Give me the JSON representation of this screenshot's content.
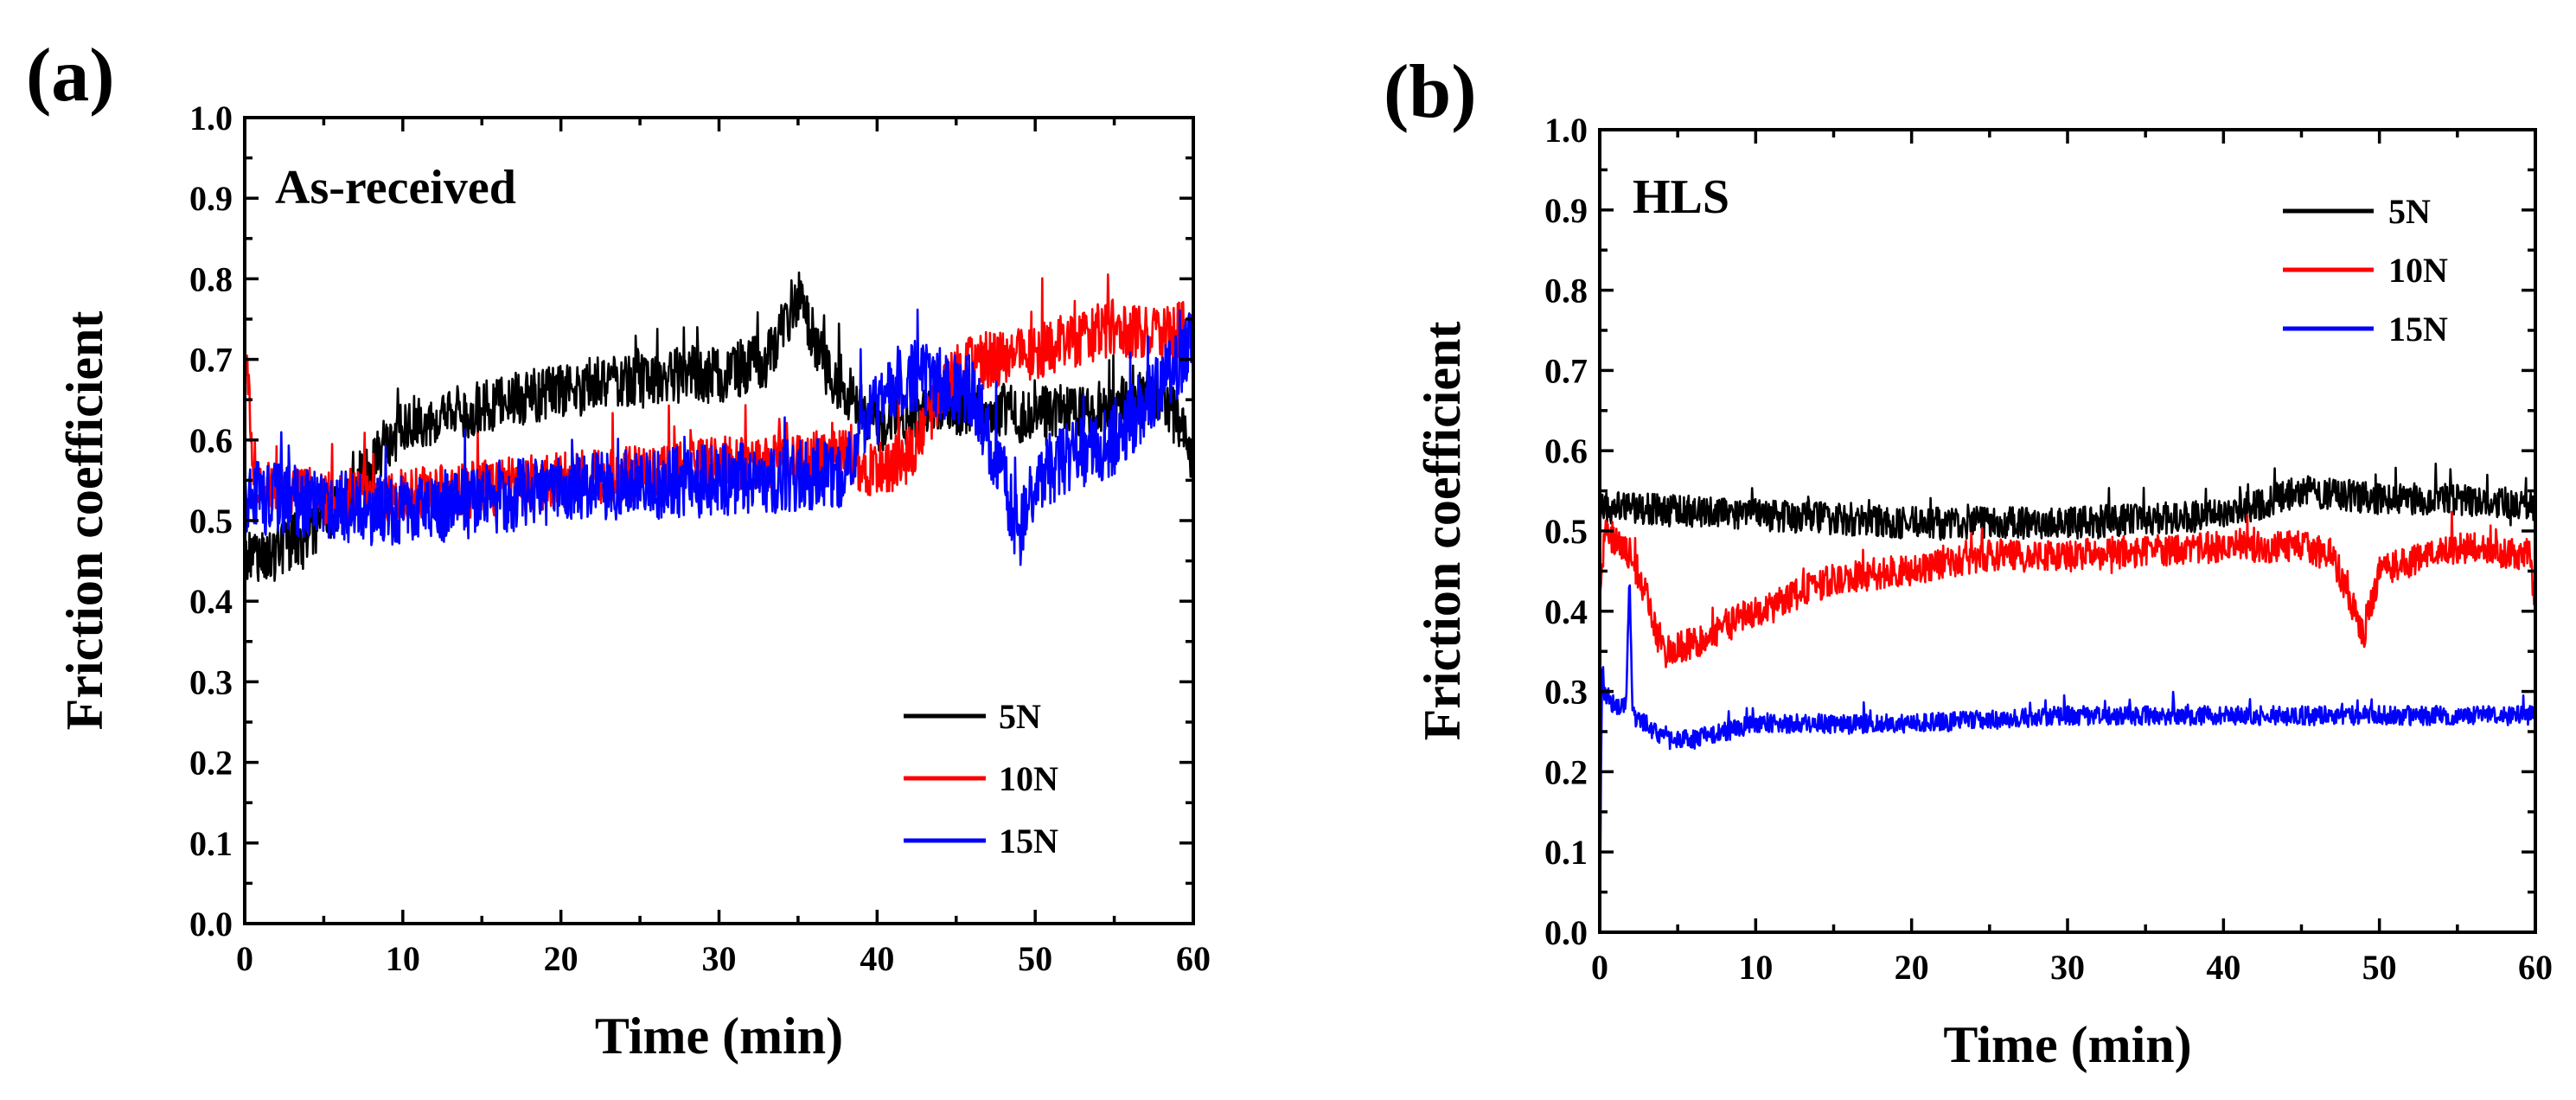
{
  "colors": {
    "5N": "#000000",
    "10N": "#ff0000",
    "15N": "#0000ff"
  },
  "chart_data": [
    {
      "panel_label": "(a)",
      "type": "line",
      "annotation": "As-received",
      "xlabel": "Time (min)",
      "ylabel": "Friction coefficient",
      "xlim": [
        0,
        60
      ],
      "ylim": [
        0,
        1.0
      ],
      "xticks": [
        "0",
        "10",
        "20",
        "30",
        "40",
        "50",
        "60"
      ],
      "yticks": [
        "0.0",
        "0.1",
        "0.2",
        "0.3",
        "0.4",
        "0.5",
        "0.6",
        "0.7",
        "0.8",
        "0.9",
        "1.0"
      ],
      "grid": false,
      "legend_position": "bottom-right",
      "series": [
        {
          "name": "5N",
          "color": "#000000",
          "noise": 0.035,
          "x": [
            0,
            2,
            5,
            8,
            10,
            15,
            20,
            25,
            30,
            33,
            35,
            37,
            40,
            45,
            50,
            55,
            58,
            60
          ],
          "y": [
            0.45,
            0.46,
            0.5,
            0.57,
            0.62,
            0.64,
            0.66,
            0.68,
            0.68,
            0.7,
            0.78,
            0.68,
            0.62,
            0.64,
            0.63,
            0.64,
            0.66,
            0.58
          ]
        },
        {
          "name": "10N",
          "color": "#ff0000",
          "noise": 0.035,
          "x": [
            0,
            0.5,
            1,
            5,
            10,
            20,
            30,
            38,
            40,
            42,
            45,
            50,
            55,
            58,
            60
          ],
          "y": [
            0.73,
            0.58,
            0.54,
            0.53,
            0.53,
            0.55,
            0.57,
            0.58,
            0.56,
            0.58,
            0.69,
            0.71,
            0.74,
            0.73,
            0.74
          ]
        },
        {
          "name": "15N",
          "color": "#0000ff",
          "noise": 0.045,
          "x": [
            0,
            5,
            10,
            20,
            30,
            38,
            40,
            42,
            46,
            48,
            49,
            50,
            52,
            55,
            58,
            60
          ],
          "y": [
            0.53,
            0.52,
            0.51,
            0.54,
            0.55,
            0.56,
            0.66,
            0.68,
            0.66,
            0.55,
            0.48,
            0.55,
            0.58,
            0.6,
            0.67,
            0.72
          ]
        }
      ]
    },
    {
      "panel_label": "(b)",
      "type": "line",
      "annotation": "HLS",
      "xlabel": "Time (min)",
      "ylabel": "Friction coefficient",
      "xlim": [
        0,
        60
      ],
      "ylim": [
        0,
        1.0
      ],
      "xticks": [
        "0",
        "10",
        "20",
        "30",
        "40",
        "50",
        "60"
      ],
      "yticks": [
        "0.0",
        "0.1",
        "0.2",
        "0.3",
        "0.4",
        "0.5",
        "0.6",
        "0.7",
        "0.8",
        "0.9",
        "1.0"
      ],
      "grid": false,
      "legend_position": "top-right",
      "series": [
        {
          "name": "5N",
          "color": "#000000",
          "noise": 0.02,
          "x": [
            0,
            10,
            20,
            30,
            40,
            45,
            50,
            55,
            60
          ],
          "y": [
            0.53,
            0.52,
            0.51,
            0.51,
            0.52,
            0.55,
            0.54,
            0.54,
            0.53
          ]
        },
        {
          "name": "10N",
          "color": "#ff0000",
          "noise": 0.02,
          "x": [
            0,
            0.3,
            1,
            2,
            3,
            4,
            6,
            10,
            15,
            20,
            25,
            30,
            40,
            45,
            47,
            48,
            49,
            50,
            55,
            59.7,
            60
          ],
          "y": [
            0.4,
            0.5,
            0.49,
            0.47,
            0.42,
            0.35,
            0.36,
            0.4,
            0.44,
            0.45,
            0.47,
            0.47,
            0.48,
            0.48,
            0.47,
            0.42,
            0.37,
            0.45,
            0.48,
            0.47,
            0.39
          ]
        },
        {
          "name": "15N",
          "color": "#0000ff",
          "noise": 0.012,
          "x": [
            0,
            0.15,
            0.3,
            1,
            1.7,
            1.9,
            2.1,
            3,
            4,
            6,
            8,
            10,
            20,
            30,
            40,
            50,
            60
          ],
          "y": [
            0.0,
            0.34,
            0.3,
            0.28,
            0.28,
            0.45,
            0.27,
            0.26,
            0.24,
            0.24,
            0.25,
            0.26,
            0.26,
            0.27,
            0.27,
            0.27,
            0.27
          ]
        }
      ]
    }
  ]
}
